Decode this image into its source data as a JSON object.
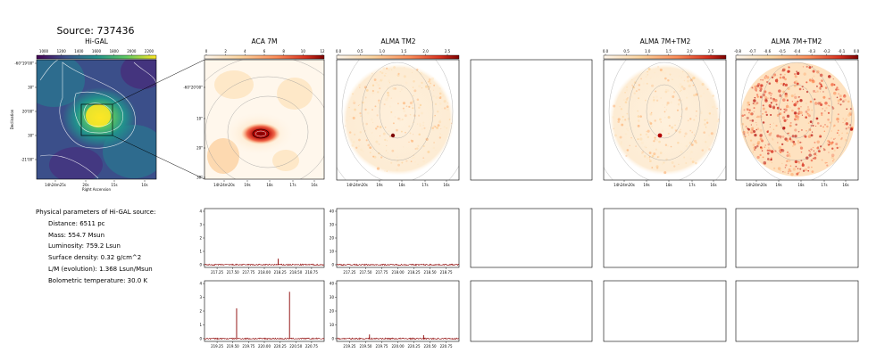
{
  "page": {
    "title": "Source: 737436"
  },
  "params": {
    "heading": "Physical parameters of Hi-GAL source:",
    "lines": [
      "Distance: 6511 pc",
      "Mass: 554.7 Msun",
      "Luminosity: 759.2 Lsun",
      "Surface density: 0.32 g/cm^2",
      "L/M (evolution): 1.368 Lsun/Msun",
      "Bolometric temperature: 30.0 K"
    ]
  },
  "chart_data": [
    {
      "type": "heatmap",
      "title": "Hi-GAL",
      "colormap": "viridis",
      "colorbar_ticks": [
        "1000",
        "1200",
        "1400",
        "1600",
        "1800",
        "2000",
        "2200"
      ],
      "xticks": [
        "14h24m25s",
        "20s",
        "15s",
        "10s"
      ],
      "yticks": [
        "-60°19'00\"",
        "30\"",
        "20'00\"",
        "30\"",
        "-21'00\""
      ],
      "xlabel": "Right Ascension",
      "ylabel": "Declination"
    },
    {
      "type": "heatmap",
      "title": "ACA 7M",
      "colormap": "OrRd",
      "colorbar_ticks": [
        "0",
        "2",
        "4",
        "6",
        "8",
        "10",
        "12"
      ],
      "xticks": [
        "14h24m20s",
        "19s",
        "18s",
        "17s",
        "16s"
      ],
      "yticks": [
        "-60°20'00\"",
        "10\"",
        "20\"",
        "30\""
      ]
    },
    {
      "type": "heatmap",
      "title": "ALMA TM2",
      "colormap": "OrRd",
      "colorbar_ticks": [
        "0.0",
        "0.5",
        "1.0",
        "1.5",
        "2.0",
        "2.5"
      ],
      "xticks": [
        "14h24m20s",
        "19s",
        "18s",
        "17s",
        "16s"
      ]
    },
    {
      "type": "heatmap",
      "title": "ALMA 7M+TM2",
      "colormap": "OrRd",
      "colorbar_ticks": [
        "0.0",
        "0.5",
        "1.0",
        "1.5",
        "2.0",
        "2.5"
      ],
      "xticks": [
        "14h24m20s",
        "19s",
        "18s",
        "17s",
        "16s"
      ]
    },
    {
      "type": "heatmap",
      "title": "ALMA 7M+TM2",
      "colormap": "OrRd",
      "colorbar_ticks": [
        "-0.8",
        "-0.7",
        "-0.6",
        "-0.5",
        "-0.4",
        "-0.3",
        "-0.2",
        "-0.1",
        "0.0"
      ],
      "xticks": [
        "14h24m20s",
        "19s",
        "18s",
        "17s",
        "16s"
      ]
    },
    {
      "type": "line",
      "color": "#8b0000",
      "xticks": [
        "217.25",
        "217.50",
        "217.75",
        "218.00",
        "218.25",
        "218.50",
        "218.75"
      ],
      "yticks": [
        "0",
        "1",
        "2",
        "3",
        "4"
      ],
      "xlim": [
        217.05,
        218.95
      ],
      "ylim": [
        -0.2,
        4.2
      ],
      "peaks": [
        {
          "x": 218.22,
          "y": 0.45
        }
      ]
    },
    {
      "type": "line",
      "color": "#8b0000",
      "xticks": [
        "217.25",
        "217.50",
        "217.75",
        "218.00",
        "218.25",
        "218.50",
        "218.75"
      ],
      "yticks": [
        "0",
        "10",
        "20",
        "30",
        "40"
      ],
      "xlim": [
        217.05,
        218.95
      ],
      "ylim": [
        -2,
        42
      ],
      "peaks": []
    },
    {
      "type": "line",
      "color": "#8b0000",
      "xticks": [
        "219.25",
        "219.50",
        "219.75",
        "220.00",
        "220.25",
        "220.50",
        "220.75"
      ],
      "yticks": [
        "0",
        "1",
        "2",
        "3",
        "4"
      ],
      "xlim": [
        219.05,
        220.95
      ],
      "ylim": [
        -0.2,
        4.2
      ],
      "peaks": [
        {
          "x": 219.56,
          "y": 2.2
        },
        {
          "x": 220.4,
          "y": 3.4
        }
      ]
    },
    {
      "type": "line",
      "color": "#8b0000",
      "xticks": [
        "219.25",
        "219.50",
        "219.75",
        "220.00",
        "220.25",
        "220.50",
        "220.75"
      ],
      "yticks": [
        "0",
        "10",
        "20",
        "30",
        "40"
      ],
      "xlim": [
        219.05,
        220.95
      ],
      "ylim": [
        -2,
        42
      ],
      "peaks": [
        {
          "x": 219.56,
          "y": 3.0
        },
        {
          "x": 220.4,
          "y": 2.5
        }
      ]
    }
  ]
}
